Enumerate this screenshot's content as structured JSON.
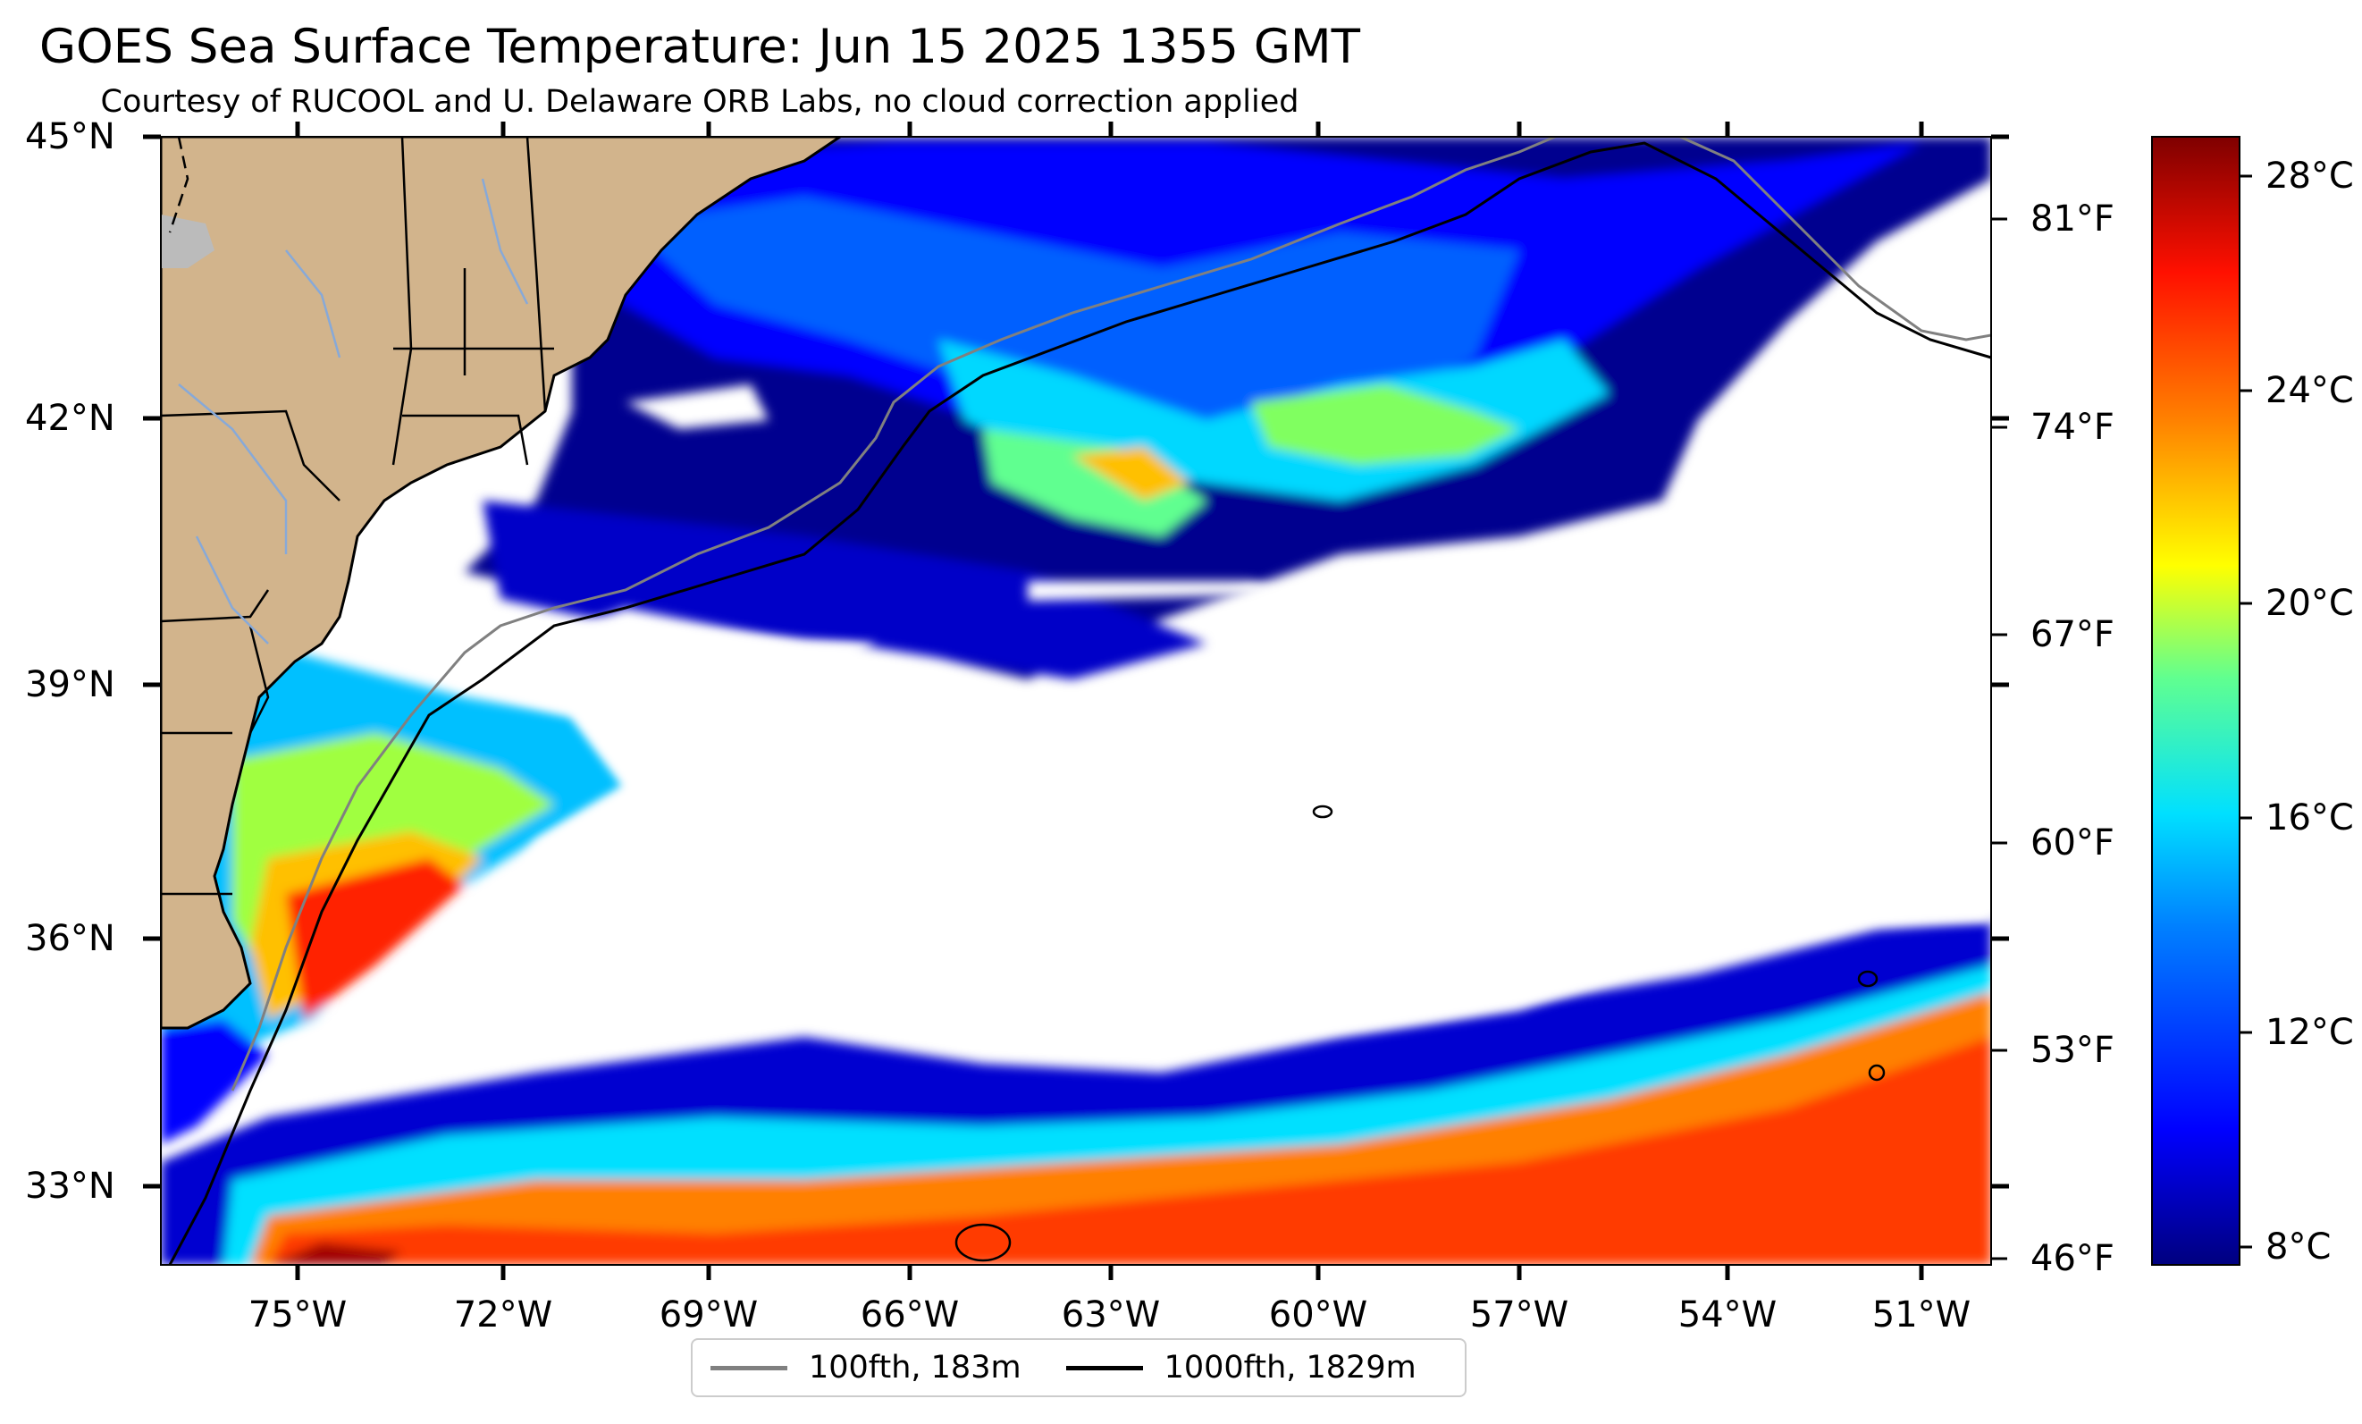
{
  "title": "GOES Sea Surface Temperature: Jun 15 2025 1355 GMT",
  "subtitle": "Courtesy of RUCOOL and U. Delaware ORB Labs, no cloud correction applied",
  "map": {
    "latitude_labels": [
      "45°N",
      "42°N",
      "39°N",
      "36°N",
      "33°N"
    ],
    "longitude_labels": [
      "75°W",
      "72°W",
      "69°W",
      "66°W",
      "63°W",
      "60°W",
      "57°W",
      "54°W",
      "51°W"
    ],
    "fahrenheit_labels": [
      "81°F",
      "74°F",
      "67°F",
      "60°F",
      "53°F",
      "46°F"
    ],
    "colors": {
      "land": "#d2b48c",
      "cloud_gap": "#ffffff",
      "isobath_100fth": "#808080",
      "isobath_1000fth": "#000000",
      "border": "#000000"
    }
  },
  "colorbar": {
    "labels": [
      "28°C",
      "24°C",
      "20°C",
      "16°C",
      "12°C",
      "8°C"
    ],
    "colormap": "jet",
    "colors": [
      "#00007f",
      "#0000ff",
      "#007fff",
      "#00ffff",
      "#7fff7f",
      "#ffff00",
      "#ff7f00",
      "#ff0000",
      "#7f0000"
    ]
  },
  "legend": {
    "items": [
      {
        "label": "100fth, 183m",
        "color": "#808080"
      },
      {
        "label": "1000fth, 1829m",
        "color": "#000000"
      }
    ]
  }
}
